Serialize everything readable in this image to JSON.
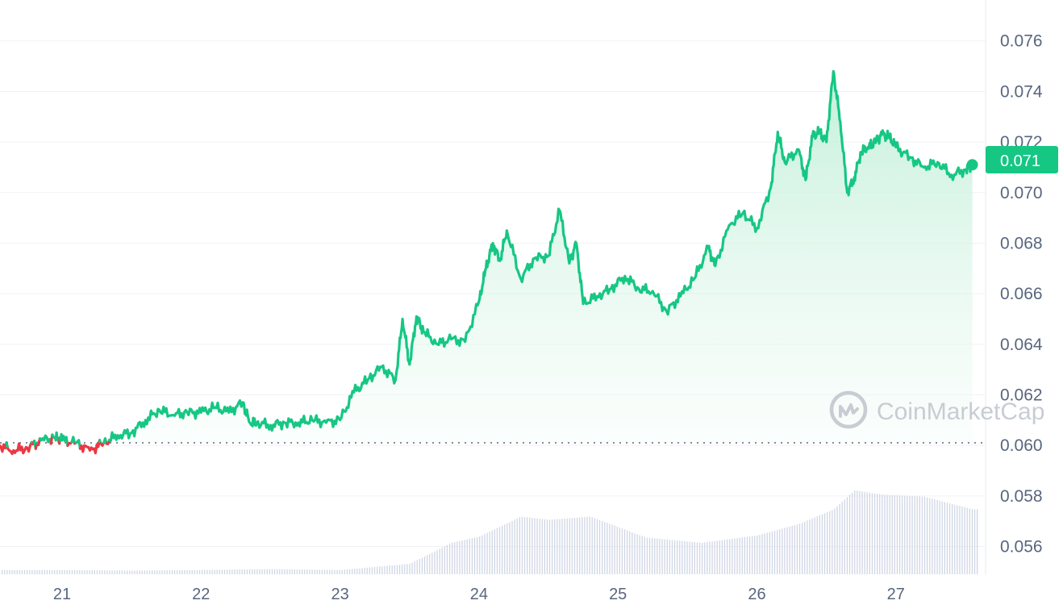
{
  "watermark": {
    "text": "CoinMarketCap",
    "icon": "coinmarketcap-logo-icon"
  },
  "colors": {
    "up": "#16c784",
    "down": "#ea3943",
    "fill_top": "#bdeed6",
    "fill_bottom": "#f4fcf8",
    "grid": "#eff2f5",
    "volume": "#cfd6e4",
    "baseline": "#58667e",
    "text": "#58667e"
  },
  "current_price": {
    "label": "0.071",
    "value": 0.0711
  },
  "chart_data": {
    "type": "line",
    "ylim": [
      0.0549,
      0.0773
    ],
    "y_ticks": [
      "0.076",
      "0.074",
      "0.072",
      "0.070",
      "0.068",
      "0.066",
      "0.064",
      "0.062",
      "0.060",
      "0.058",
      "0.056"
    ],
    "x_ticks": [
      "21",
      "22",
      "23",
      "24",
      "25",
      "26",
      "27"
    ],
    "xlim": [
      20.55,
      27.62
    ],
    "baseline": 0.0601,
    "grid": true,
    "series": [
      {
        "x": [
          20.55,
          20.65,
          20.75,
          20.85,
          20.95,
          21.0,
          21.1,
          21.2,
          21.3,
          21.4,
          21.5,
          21.6,
          21.7,
          21.8,
          21.9,
          22.0,
          22.1,
          22.2,
          22.3,
          22.35,
          22.4,
          22.5,
          22.6,
          22.7,
          22.8,
          22.9,
          23.0,
          23.1,
          23.2,
          23.3,
          23.4,
          23.45,
          23.5,
          23.55,
          23.6,
          23.7,
          23.8,
          23.9,
          24.0,
          24.05,
          24.1,
          24.15,
          24.2,
          24.3,
          24.4,
          24.5,
          24.58,
          24.65,
          24.7,
          24.75,
          24.85,
          24.95,
          25.05,
          25.15,
          25.25,
          25.35,
          25.45,
          25.55,
          25.65,
          25.7,
          25.8,
          25.9,
          26.0,
          26.1,
          26.15,
          26.2,
          26.3,
          26.35,
          26.4,
          26.45,
          26.5,
          26.55,
          26.6,
          26.65,
          26.7,
          26.75,
          26.8,
          26.85,
          26.9,
          26.95,
          27.0,
          27.1,
          27.2,
          27.3,
          27.4,
          27.5,
          27.55
        ],
        "values": [
          0.06,
          0.0598,
          0.0599,
          0.0602,
          0.0603,
          0.0602,
          0.0601,
          0.0598,
          0.0601,
          0.0604,
          0.0605,
          0.061,
          0.0614,
          0.0612,
          0.0613,
          0.0613,
          0.0615,
          0.0613,
          0.0617,
          0.0609,
          0.0609,
          0.0608,
          0.0609,
          0.0609,
          0.061,
          0.0609,
          0.061,
          0.0621,
          0.0626,
          0.0631,
          0.0626,
          0.065,
          0.0632,
          0.0651,
          0.0645,
          0.064,
          0.0642,
          0.0641,
          0.0657,
          0.067,
          0.068,
          0.0673,
          0.0685,
          0.0666,
          0.0674,
          0.0675,
          0.0693,
          0.0672,
          0.068,
          0.0656,
          0.0659,
          0.0662,
          0.0667,
          0.0662,
          0.0661,
          0.0653,
          0.0659,
          0.0666,
          0.0678,
          0.0671,
          0.0687,
          0.0692,
          0.0686,
          0.0702,
          0.0724,
          0.0712,
          0.0717,
          0.0705,
          0.0722,
          0.0724,
          0.072,
          0.0748,
          0.0728,
          0.07,
          0.0706,
          0.0716,
          0.0718,
          0.072,
          0.0723,
          0.0722,
          0.0718,
          0.0714,
          0.071,
          0.0712,
          0.0707,
          0.0709,
          0.0711
        ]
      }
    ],
    "volume_series": [
      {
        "x": 20.55,
        "v": 0.04
      },
      {
        "x": 21.0,
        "v": 0.04
      },
      {
        "x": 21.5,
        "v": 0.035
      },
      {
        "x": 22.0,
        "v": 0.04
      },
      {
        "x": 22.5,
        "v": 0.05
      },
      {
        "x": 23.0,
        "v": 0.04
      },
      {
        "x": 23.5,
        "v": 0.1
      },
      {
        "x": 23.8,
        "v": 0.3
      },
      {
        "x": 24.0,
        "v": 0.36
      },
      {
        "x": 24.3,
        "v": 0.55
      },
      {
        "x": 24.5,
        "v": 0.52
      },
      {
        "x": 24.8,
        "v": 0.55
      },
      {
        "x": 25.2,
        "v": 0.35
      },
      {
        "x": 25.6,
        "v": 0.3
      },
      {
        "x": 26.0,
        "v": 0.37
      },
      {
        "x": 26.3,
        "v": 0.48
      },
      {
        "x": 26.55,
        "v": 0.62
      },
      {
        "x": 26.7,
        "v": 0.8
      },
      {
        "x": 26.9,
        "v": 0.76
      },
      {
        "x": 27.2,
        "v": 0.74
      },
      {
        "x": 27.55,
        "v": 0.62
      }
    ]
  }
}
